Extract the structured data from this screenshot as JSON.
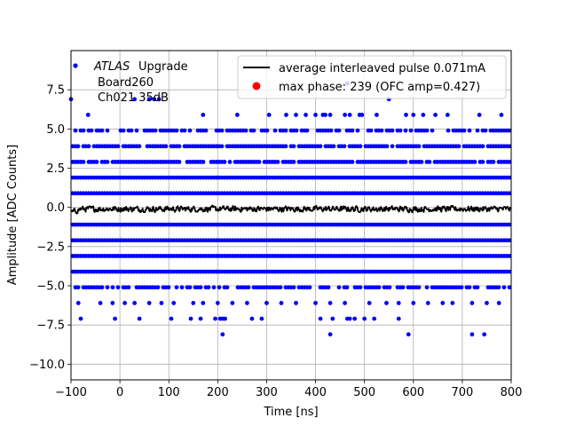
{
  "chart_data": {
    "type": "scatter",
    "xlabel": "Time [ns]",
    "ylabel": "Amplitude [ADC Counts]",
    "xlim": [
      -100,
      800
    ],
    "ylim": [
      -11.0,
      10.0
    ],
    "xticks": [
      -100,
      0,
      100,
      200,
      300,
      400,
      500,
      600,
      700,
      800
    ],
    "xtick_labels": [
      "−100",
      "0",
      "100",
      "200",
      "300",
      "400",
      "500",
      "600",
      "700",
      "800"
    ],
    "yticks": [
      -10.0,
      -7.5,
      -5.0,
      -2.5,
      0.0,
      2.5,
      5.0,
      7.5
    ],
    "ytick_labels": [
      "−10.0",
      "−7.5",
      "−5.0",
      "−2.5",
      "0.0",
      "2.5",
      "5.0",
      "7.5"
    ],
    "grid": true,
    "annotation": {
      "atlas": "ATLAS",
      "upgrade": "Upgrade",
      "board": "Board260",
      "channel": "Ch021 35dB"
    },
    "series": [
      {
        "name": "samples",
        "kind": "scatter",
        "color": "#0000ff",
        "dense_bands": [
          {
            "y": 3.9,
            "density": 0.85
          },
          {
            "y": 2.9,
            "density": 0.9
          },
          {
            "y": 1.9,
            "density": 1.0
          },
          {
            "y": 0.9,
            "density": 1.0
          },
          {
            "y": -1.1,
            "density": 1.0
          },
          {
            "y": -2.1,
            "density": 1.0
          },
          {
            "y": -3.1,
            "density": 1.0
          },
          {
            "y": -4.1,
            "density": 1.0
          },
          {
            "y": 4.9,
            "density": 0.6
          },
          {
            "y": -5.1,
            "density": 0.75
          }
        ],
        "sparse_bands": [
          {
            "y": 5.9,
            "x": [
              -65,
              170,
              240,
              305,
              340,
              360,
              380,
              400,
              415,
              420,
              430,
              460,
              470,
              490,
              495,
              525,
              585,
              600,
              620,
              645,
              670,
              735,
              780
            ]
          },
          {
            "y": -6.1,
            "x": [
              -85,
              -40,
              -15,
              10,
              30,
              60,
              85,
              110,
              150,
              170,
              200,
              230,
              260,
              300,
              330,
              360,
              400,
              430,
              460,
              510,
              545,
              570,
              600,
              630,
              660,
              680,
              720,
              750,
              775
            ]
          },
          {
            "y": 6.9,
            "x": [
              -100,
              30,
              60,
              70,
              80,
              550
            ]
          },
          {
            "y": -7.1,
            "x": [
              -80,
              -10,
              40,
              105,
              145,
              165,
              195,
              205,
              210,
              215,
              270,
              290,
              410,
              435,
              465,
              470,
              480,
              500,
              520,
              570
            ]
          },
          {
            "y": 7.9,
            "x": [
              465
            ]
          },
          {
            "y": -8.1,
            "x": [
              210,
              430,
              590,
              720,
              745
            ]
          }
        ]
      },
      {
        "name": "average interleaved pulse 0.071mA",
        "kind": "line",
        "color": "#000000",
        "x_range": [
          -100,
          800
        ],
        "mean": -0.1,
        "amplitude": 0.25
      },
      {
        "name": "max phase: 239 (OFC amp=0.427)",
        "kind": "marker",
        "color": "#ff0000"
      }
    ],
    "legend": [
      {
        "label": "average interleaved pulse 0.071mA",
        "kind": "line",
        "color": "#000000"
      },
      {
        "label": "max phase: 239 (OFC amp=0.427)",
        "kind": "marker",
        "color": "#ff0000"
      }
    ],
    "legend_position": "top-right"
  }
}
